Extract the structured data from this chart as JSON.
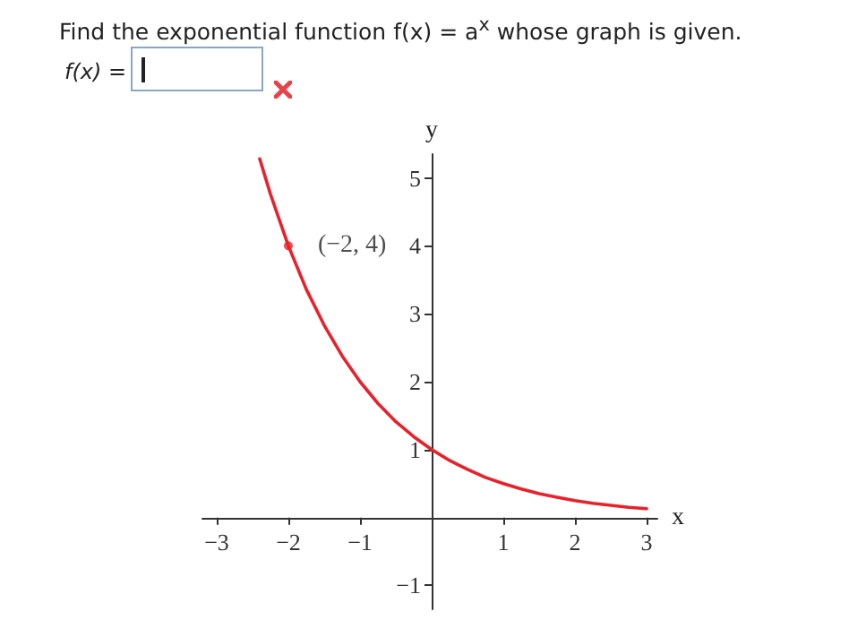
{
  "chart_data": {
    "type": "line",
    "title": "Find the exponential function f(x) = a$^{x}$ whose graph is given.",
    "xlabel": "x",
    "ylabel": "y",
    "annotations": [
      "f(x) =",
      {
        "text": "(−2, 4)",
        "x": -2,
        "y": 4
      }
    ],
    "xlim": [
      -3.2,
      3.15
    ],
    "ylim": [
      -1.35,
      5.35
    ],
    "xticks": [
      -3,
      -2,
      -1,
      1,
      2,
      3
    ],
    "yticks": [
      -1,
      1,
      2,
      3,
      4,
      5
    ],
    "grid": false,
    "marker": "none",
    "line_style": "solid",
    "series": [
      {
        "color": "#e8212a",
        "x": [
          -2.4,
          -2.25,
          -2,
          -1.75,
          -1.5,
          -1.25,
          -1,
          -0.75,
          -0.5,
          -0.25,
          0,
          0.25,
          0.5,
          0.75,
          1,
          1.25,
          1.5,
          1.75,
          2,
          2.25,
          2.5,
          2.75,
          3
        ],
        "values": [
          5.28,
          4.76,
          4,
          3.36,
          2.83,
          2.38,
          2,
          1.68,
          1.41,
          1.19,
          1,
          0.84,
          0.71,
          0.59,
          0.5,
          0.42,
          0.35,
          0.3,
          0.25,
          0.21,
          0.18,
          0.15,
          0.13
        ]
      }
    ]
  }
}
